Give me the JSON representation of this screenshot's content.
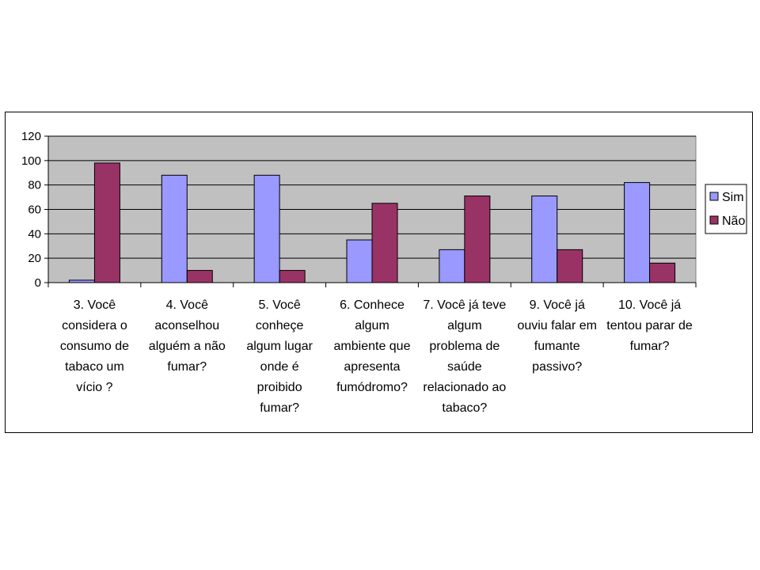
{
  "chart_data": {
    "type": "bar",
    "title": "",
    "xlabel": "",
    "ylabel": "",
    "ylim": [
      0,
      120
    ],
    "yticks": [
      0,
      20,
      40,
      60,
      80,
      100,
      120
    ],
    "grid": true,
    "legend_position": "right",
    "categories": [
      "3. Você considera o consumo de tabaco um vício ?",
      "4. Você aconselhou alguém a não fumar?",
      "5. Você conheçe algum lugar onde é proibido fumar?",
      "6. Conhece algum ambiente que apresenta fumódromo?",
      "7. Você já teve algum problema de saúde relacionado ao tabaco?",
      "9. Você já ouviu falar em fumante passivo?",
      "10. Você já tentou parar de fumar?"
    ],
    "category_lines": [
      [
        "3. Você",
        "considera o",
        "consumo de",
        "tabaco um",
        "vício ?"
      ],
      [
        "4. Você",
        "aconselhou",
        "alguém a não",
        "fumar?"
      ],
      [
        "5. Você",
        "conheçe",
        "algum lugar",
        "onde é",
        "proibido",
        "fumar?"
      ],
      [
        "6. Conhece",
        "algum",
        "ambiente que",
        "apresenta",
        "fumódromo?"
      ],
      [
        "7. Você já teve",
        "algum",
        "problema de",
        "saúde",
        "relacionado ao",
        "tabaco?"
      ],
      [
        "9. Você já",
        "ouviu falar em",
        "fumante",
        "passivo?"
      ],
      [
        "10. Você já",
        "tentou parar de",
        "fumar?"
      ]
    ],
    "series": [
      {
        "name": "Sim",
        "color": "#9999FF",
        "values": [
          2,
          88,
          88,
          35,
          27,
          71,
          82
        ]
      },
      {
        "name": "Não",
        "color": "#993366",
        "values": [
          98,
          10,
          10,
          65,
          71,
          27,
          16
        ]
      }
    ],
    "plot_background": "#C0C0C0"
  }
}
